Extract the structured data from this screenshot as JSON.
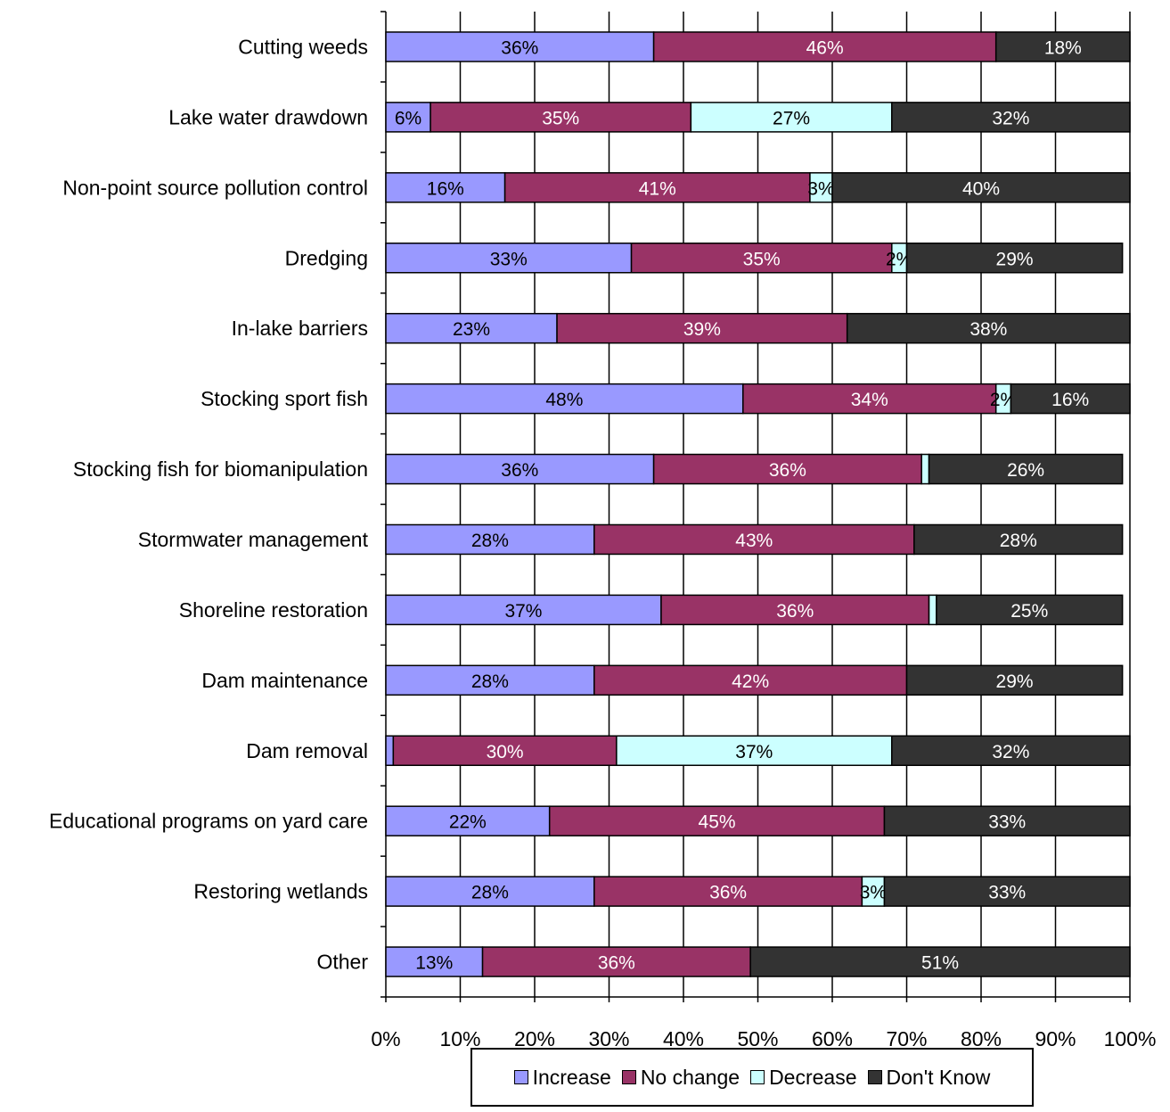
{
  "chart_data": {
    "type": "bar",
    "orientation": "horizontal",
    "stacked": true,
    "categories": [
      "Cutting weeds",
      "Lake water drawdown",
      "Non-point source pollution control",
      "Dredging",
      "In-lake barriers",
      "Stocking sport fish",
      "Stocking fish for biomanipulation",
      "Stormwater management",
      "Shoreline restoration",
      "Dam maintenance",
      "Dam removal",
      "Educational programs on yard care",
      "Restoring wetlands",
      "Other"
    ],
    "series": [
      {
        "name": "Increase",
        "color": "#9999FF",
        "values": [
          36,
          6,
          16,
          33,
          23,
          48,
          36,
          28,
          37,
          28,
          1,
          22,
          28,
          13
        ],
        "labels": [
          "36%",
          "6%",
          "16%",
          "33%",
          "23%",
          "48%",
          "36%",
          "28%",
          "37%",
          "28%",
          "",
          "22%",
          "28%",
          "13%"
        ]
      },
      {
        "name": "No change",
        "color": "#993366",
        "values": [
          46,
          35,
          41,
          35,
          39,
          34,
          36,
          43,
          36,
          42,
          30,
          45,
          36,
          36
        ],
        "labels": [
          "46%",
          "35%",
          "41%",
          "35%",
          "39%",
          "34%",
          "36%",
          "43%",
          "36%",
          "42%",
          "30%",
          "45%",
          "36%",
          "36%"
        ]
      },
      {
        "name": "Decrease",
        "color": "#CCFFFF",
        "values": [
          0,
          27,
          3,
          2,
          0,
          2,
          1,
          0,
          1,
          0,
          37,
          0,
          3,
          0
        ],
        "labels": [
          "",
          "27%",
          "3%",
          "2%",
          "",
          "2%",
          "",
          "",
          "",
          "",
          "37%",
          "",
          "3%",
          ""
        ]
      },
      {
        "name": "Don't Know",
        "color": "#333333",
        "values": [
          18,
          32,
          40,
          29,
          38,
          16,
          26,
          28,
          25,
          29,
          32,
          33,
          33,
          51
        ],
        "labels": [
          "18%",
          "32%",
          "40%",
          "29%",
          "38%",
          "16%",
          "26%",
          "28%",
          "25%",
          "29%",
          "32%",
          "33%",
          "33%",
          "51%"
        ]
      }
    ],
    "x_ticks": [
      "0%",
      "10%",
      "20%",
      "30%",
      "40%",
      "50%",
      "60%",
      "70%",
      "80%",
      "90%",
      "100%"
    ],
    "xlim": [
      0,
      100
    ],
    "grid": "vertical",
    "legend": {
      "position": "bottom-center",
      "entries": [
        "Increase",
        "No change",
        "Decrease",
        "Don't Know"
      ]
    },
    "title": "",
    "xlabel": "",
    "ylabel": ""
  }
}
